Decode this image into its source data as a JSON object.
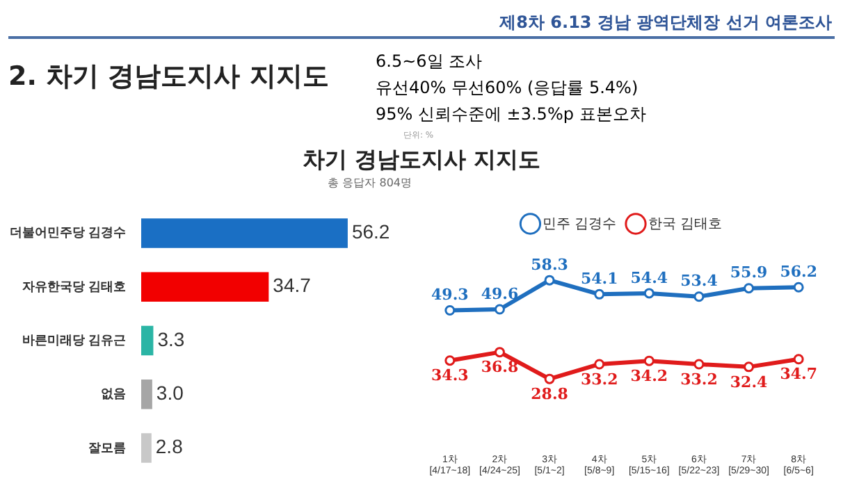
{
  "chart_data": [
    {
      "type": "bar",
      "orientation": "horizontal",
      "title": "차기 경남도지사 지지도",
      "subtitle": "총 응답자 804명",
      "annotations": [
        "제8차 6.13 경남 광역단체장 선거 여론조사",
        "2. 차기 경남도지사 지지도",
        "6.5~6일 조사",
        "유선40% 무선60% (응답률 5.4%)",
        "95% 신뢰수준에 ±3.5%p 표본오차",
        "단위: %"
      ],
      "categories": [
        "더불어민주당 김경수",
        "자유한국당 김태호",
        "바른미래당 김유근",
        "없음",
        "잘모름"
      ],
      "values": [
        56.2,
        34.7,
        3.3,
        3.0,
        2.8
      ],
      "colors": [
        "#1a6fc4",
        "#f20000",
        "#2bb5a5",
        "#a6a6a6",
        "#c8c8c8"
      ],
      "value_labels": [
        "56.2",
        "34.7",
        "3.3",
        "3.0",
        "2.8"
      ],
      "grid": false,
      "legend": false,
      "tick_labels": "y"
    },
    {
      "type": "line",
      "categories": [
        "1차\n[4/17~18]",
        "2차\n[4/24~25]",
        "3차\n[5/1~2]",
        "4차\n[5/8~9]",
        "5차\n[5/15~16]",
        "6차\n[5/22~23]",
        "7차\n[5/29~30]",
        "8차\n[6/5~6]"
      ],
      "series": [
        {
          "name": "민주 김경수",
          "color": "#1f6fbf",
          "values": [
            49.3,
            49.6,
            58.3,
            54.1,
            54.4,
            53.4,
            55.9,
            56.2
          ]
        },
        {
          "name": "한국 김태호",
          "color": "#e01b1b",
          "values": [
            34.3,
            36.8,
            28.8,
            33.2,
            34.2,
            33.2,
            32.4,
            34.7
          ]
        }
      ],
      "data_labels": true,
      "marker": "circle",
      "line_style": "solid",
      "legend": "top",
      "grid": false,
      "tick_labels": "x"
    }
  ]
}
